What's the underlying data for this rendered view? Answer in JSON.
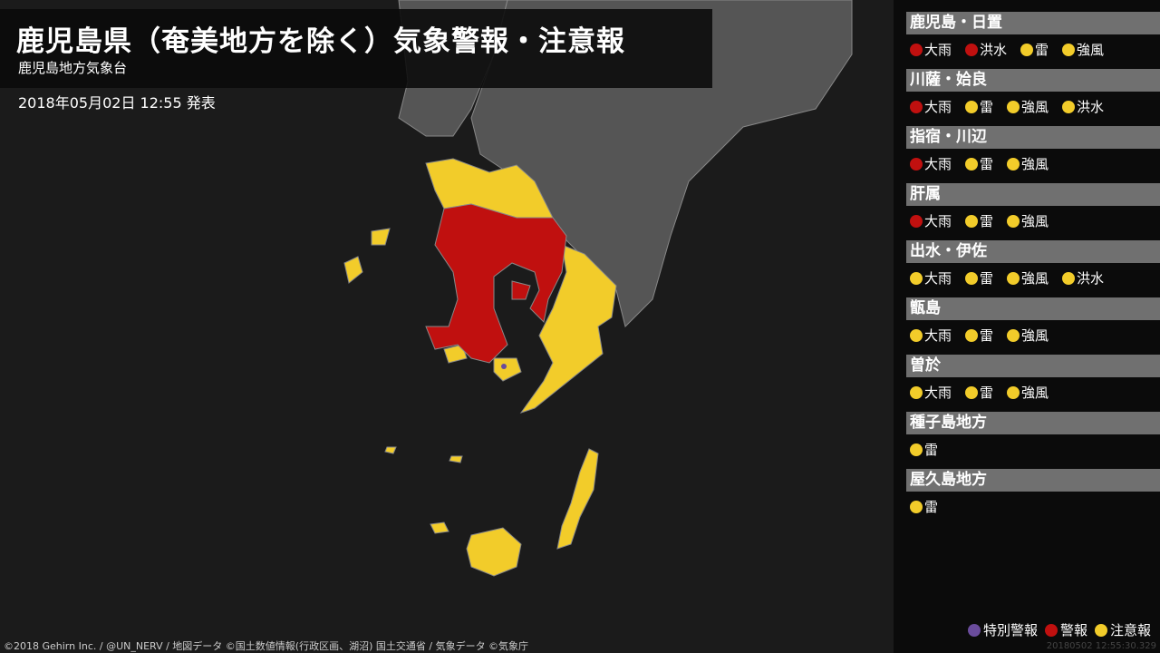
{
  "header": {
    "title": "鹿児島県（奄美地方を除く）気象警報・注意報",
    "office": "鹿児島地方気象台",
    "issued": "2018年05月02日 12:55 発表"
  },
  "colors": {
    "special_warning": "#6a4c9c",
    "warning": "#c0100f",
    "advisory": "#f2cc2a",
    "land": "#555555",
    "sea": "#1b1b1b"
  },
  "regions": [
    {
      "name": "鹿児島・日置",
      "items": [
        {
          "label": "大雨",
          "level": "warning"
        },
        {
          "label": "洪水",
          "level": "warning"
        },
        {
          "label": "雷",
          "level": "advisory"
        },
        {
          "label": "強風",
          "level": "advisory"
        }
      ]
    },
    {
      "name": "川薩・姶良",
      "items": [
        {
          "label": "大雨",
          "level": "warning"
        },
        {
          "label": "雷",
          "level": "advisory"
        },
        {
          "label": "強風",
          "level": "advisory"
        },
        {
          "label": "洪水",
          "level": "advisory"
        }
      ]
    },
    {
      "name": "指宿・川辺",
      "items": [
        {
          "label": "大雨",
          "level": "warning"
        },
        {
          "label": "雷",
          "level": "advisory"
        },
        {
          "label": "強風",
          "level": "advisory"
        }
      ]
    },
    {
      "name": "肝属",
      "items": [
        {
          "label": "大雨",
          "level": "warning"
        },
        {
          "label": "雷",
          "level": "advisory"
        },
        {
          "label": "強風",
          "level": "advisory"
        }
      ]
    },
    {
      "name": "出水・伊佐",
      "items": [
        {
          "label": "大雨",
          "level": "advisory"
        },
        {
          "label": "雷",
          "level": "advisory"
        },
        {
          "label": "強風",
          "level": "advisory"
        },
        {
          "label": "洪水",
          "level": "advisory"
        }
      ]
    },
    {
      "name": "甑島",
      "items": [
        {
          "label": "大雨",
          "level": "advisory"
        },
        {
          "label": "雷",
          "level": "advisory"
        },
        {
          "label": "強風",
          "level": "advisory"
        }
      ]
    },
    {
      "name": "曽於",
      "items": [
        {
          "label": "大雨",
          "level": "advisory"
        },
        {
          "label": "雷",
          "level": "advisory"
        },
        {
          "label": "強風",
          "level": "advisory"
        }
      ]
    },
    {
      "name": "種子島地方",
      "items": [
        {
          "label": "雷",
          "level": "advisory"
        }
      ]
    },
    {
      "name": "屋久島地方",
      "items": [
        {
          "label": "雷",
          "level": "advisory"
        }
      ]
    }
  ],
  "legend": [
    {
      "label": "特別警報",
      "level": "special_warning"
    },
    {
      "label": "警報",
      "level": "warning"
    },
    {
      "label": "注意報",
      "level": "advisory"
    }
  ],
  "credit": "©2018 Gehirn Inc. / @UN_NERV / 地図データ ©国土数値情報(行政区画、湖沼) 国土交通省 / 気象データ ©気象庁",
  "timestamp": "20180502 12:55:30.329"
}
